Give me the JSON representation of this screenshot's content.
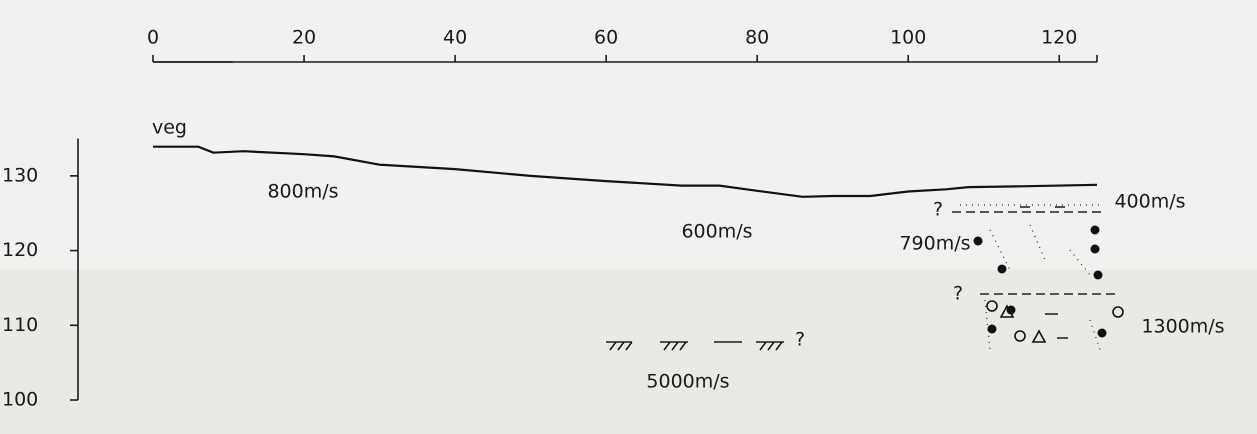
{
  "chart_data": {
    "type": "line",
    "x": [
      0,
      6,
      8,
      12,
      20,
      24,
      30,
      40,
      50,
      60,
      70,
      75,
      80,
      86,
      90,
      95,
      100,
      105,
      108,
      115,
      125
    ],
    "values": [
      133.9,
      133.9,
      133.1,
      133.3,
      132.9,
      132.6,
      131.5,
      130.9,
      130.0,
      129.3,
      128.7,
      128.7,
      128.0,
      127.2,
      127.3,
      127.3,
      127.9,
      128.2,
      128.5,
      128.6,
      128.8
    ],
    "color": "#111111",
    "xlim": [
      0,
      125
    ],
    "xticks": [
      0,
      20,
      40,
      60,
      80,
      100,
      120
    ],
    "ylim": [
      100,
      135
    ],
    "yticks": [
      100,
      110,
      120,
      130
    ],
    "annotations": [
      "veg",
      "800m/s",
      "600m/s",
      "400m/s",
      "790m/s",
      "1300m/s",
      "5000m/s",
      "?",
      "?",
      "?"
    ]
  }
}
